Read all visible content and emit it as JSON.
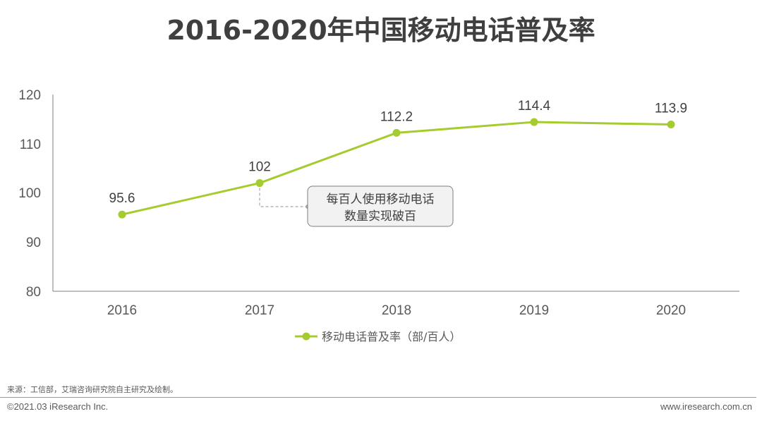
{
  "header": {
    "title": "2016-2020年中国移动电话普及率"
  },
  "chart_data": {
    "type": "line",
    "title": "2016-2020年中国移动电话普及率",
    "categories": [
      "2016",
      "2017",
      "2018",
      "2019",
      "2020"
    ],
    "series": [
      {
        "name": "移动电话普及率（部/百人）",
        "values": [
          95.6,
          102,
          112.2,
          114.4,
          113.9
        ],
        "labels": [
          "95.6",
          "102",
          "112.2",
          "114.4",
          "113.9"
        ],
        "color": "#a5cc2e"
      }
    ],
    "ylim": [
      80,
      120
    ],
    "yticks": [
      "80",
      "90",
      "100",
      "110",
      "120"
    ],
    "xlabel": "",
    "ylabel": "",
    "grid": false,
    "legend": "bottom-center",
    "annotation": {
      "lines": [
        "每百人使用移动电话",
        "数量实现破百"
      ],
      "anchor_category": "2017"
    }
  },
  "footer": {
    "source": "来源：工信部，艾瑞咨询研究院自主研究及绘制。",
    "copyright": "©2021.03 iResearch Inc.",
    "website": "www.iresearch.com.cn"
  },
  "colors": {
    "line": "#a5cc2e",
    "axis": "#7f7f7f",
    "annotation_bg": "#f2f2f2",
    "annotation_border": "#7f7f7f"
  }
}
